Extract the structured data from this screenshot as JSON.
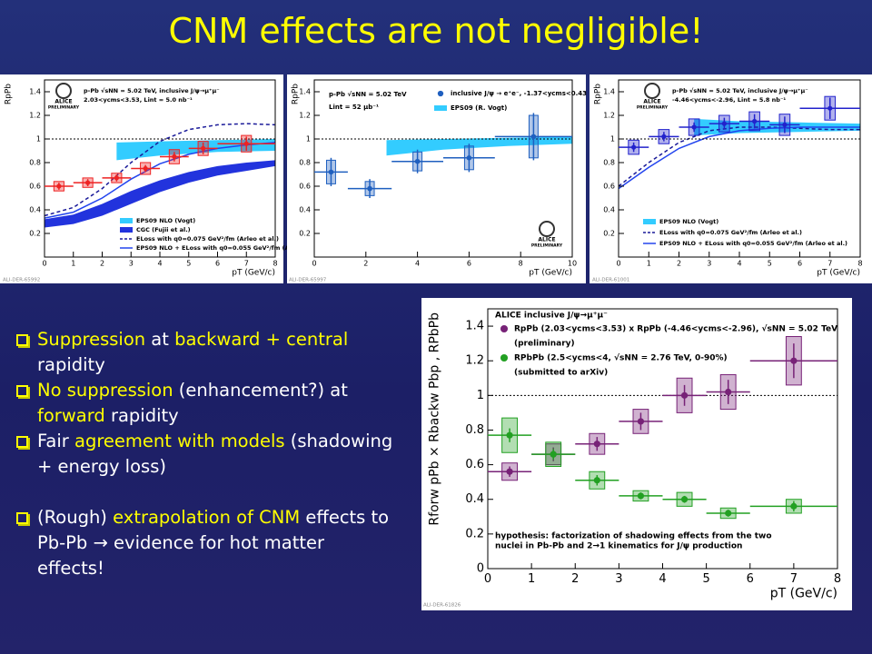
{
  "title": "CNM effects are not negligible!",
  "bullets": [
    [
      {
        "text": "Suppression",
        "color": "#ffff00"
      },
      {
        "text": " at ",
        "color": "#ffffff"
      },
      {
        "text": "backward + central",
        "color": "#ffff00"
      },
      {
        "text": " rapidity",
        "color": "#ffffff"
      }
    ],
    [
      {
        "text": "No suppression",
        "color": "#ffff00"
      },
      {
        "text": " (enhancement?) at ",
        "color": "#ffffff"
      },
      {
        "text": "forward",
        "color": "#ffff00"
      },
      {
        "text": " rapidity",
        "color": "#ffffff"
      }
    ],
    [
      {
        "text": "Fair ",
        "color": "#ffffff"
      },
      {
        "text": "agreement with models",
        "color": "#ffff00"
      },
      {
        "text": " (shadowing + energy loss)",
        "color": "#ffffff"
      }
    ],
    [
      {
        "text": "(Rough) ",
        "color": "#ffffff"
      },
      {
        "text": "extrapolation of CNM",
        "color": "#ffff00"
      },
      {
        "text": " effects  to Pb-Pb → evidence for hot matter effects!",
        "color": "#ffffff"
      }
    ]
  ],
  "chart_data": [
    {
      "type": "scatter",
      "xlabel": "pT (GeV/c)",
      "ylabel": "RpPb",
      "xlim": [
        0,
        8
      ],
      "ylim": [
        0,
        1.5
      ],
      "xticks": [
        0,
        1,
        2,
        3,
        4,
        5,
        6,
        7,
        8
      ],
      "yticks": [
        0.2,
        0.4,
        0.6,
        0.8,
        1,
        1.2,
        1.4
      ],
      "hline": 1,
      "annotations": [
        "p-Pb √sNN = 5.02 TeV, inclusive J/ψ→μ⁺μ⁻",
        "2.03<ycms<3.53, Lint = 5.0 nb⁻¹"
      ],
      "logo": [
        "ALICE",
        "PRELIMINARY"
      ],
      "ref": "ALI-DER-65992",
      "bands": [
        {
          "name": "EPS09 NLO (Vogt)",
          "color": "#33ccff",
          "x": [
            2.5,
            4,
            6,
            8
          ],
          "lower": [
            0.82,
            0.86,
            0.89,
            0.9
          ],
          "upper": [
            0.97,
            0.98,
            0.99,
            1.0
          ]
        },
        {
          "name": "CGC (Fujii et al.)",
          "color": "#2233dd",
          "x": [
            0,
            1,
            2,
            3,
            4,
            5,
            6,
            7,
            8
          ],
          "lower": [
            0.25,
            0.28,
            0.35,
            0.45,
            0.55,
            0.63,
            0.69,
            0.73,
            0.77
          ],
          "upper": [
            0.32,
            0.36,
            0.45,
            0.56,
            0.65,
            0.72,
            0.77,
            0.8,
            0.82
          ]
        }
      ],
      "lines": [
        {
          "name": "ELoss with q0=0.075 GeV²/fm (Arleo et al.)",
          "color": "#1a1a99",
          "dashed": true,
          "x": [
            0,
            1,
            2,
            3,
            4,
            5,
            6,
            7,
            8
          ],
          "values": [
            0.35,
            0.42,
            0.58,
            0.8,
            0.98,
            1.08,
            1.12,
            1.13,
            1.12
          ]
        },
        {
          "name": "EPS09 NLO + ELoss with q0=0.055 GeV²/fm (Arleo et al.)",
          "color": "#2244ee",
          "dashed": false,
          "x": [
            0,
            1,
            2,
            3,
            4,
            5,
            6,
            7,
            8
          ],
          "values": [
            0.33,
            0.38,
            0.5,
            0.66,
            0.79,
            0.87,
            0.92,
            0.95,
            0.97
          ]
        }
      ],
      "series": [
        {
          "name": null,
          "color": "#ee2222",
          "x": [
            0.5,
            1.5,
            2.5,
            3.5,
            4.5,
            5.5,
            7
          ],
          "xerr": [
            0.5,
            0.5,
            0.5,
            0.5,
            0.5,
            0.5,
            1
          ],
          "values": [
            0.6,
            0.63,
            0.67,
            0.75,
            0.85,
            0.92,
            0.96
          ],
          "err": [
            0.03,
            0.03,
            0.03,
            0.03,
            0.04,
            0.05,
            0.06
          ],
          "syst": [
            0.04,
            0.04,
            0.04,
            0.05,
            0.06,
            0.06,
            0.07
          ]
        }
      ]
    },
    {
      "type": "scatter",
      "xlabel": "pT (GeV/c)",
      "ylabel": "RpPb",
      "xlim": [
        0,
        10
      ],
      "ylim": [
        0,
        1.5
      ],
      "xticks": [
        0,
        2,
        4,
        6,
        8,
        10
      ],
      "yticks": [
        0.2,
        0.4,
        0.6,
        0.8,
        1,
        1.2,
        1.4
      ],
      "hline": 1,
      "annotations": [
        "p-Pb √sNN = 5.02 TeV",
        "Lint = 52 μb⁻¹"
      ],
      "logo": [
        "ALICE",
        "PRELIMINARY"
      ],
      "ref": "ALI-DER-65997",
      "bands": [
        {
          "name": "EPS09 (R. Vogt)",
          "color": "#33ccff",
          "x": [
            2.8,
            5,
            7.5,
            10
          ],
          "lower": [
            0.86,
            0.91,
            0.94,
            0.96
          ],
          "upper": [
            0.99,
            1.0,
            1.01,
            1.02
          ]
        }
      ],
      "lines": [],
      "series": [
        {
          "name": "inclusive J/ψ → e⁺e⁻, -1.37<ycms<0.43",
          "color": "#1f5fbf",
          "x": [
            0.65,
            2.15,
            4,
            6,
            8.5
          ],
          "xerr": [
            0.65,
            0.85,
            1,
            1,
            1.5
          ],
          "values": [
            0.72,
            0.58,
            0.81,
            0.84,
            1.02
          ],
          "err": [
            0.12,
            0.08,
            0.1,
            0.12,
            0.2
          ],
          "syst": [
            0.1,
            0.06,
            0.08,
            0.1,
            0.18
          ]
        }
      ]
    },
    {
      "type": "scatter",
      "xlabel": "pT (GeV/c)",
      "ylabel": "RpPb",
      "xlim": [
        0,
        8
      ],
      "ylim": [
        0,
        1.5
      ],
      "xticks": [
        0,
        1,
        2,
        3,
        4,
        5,
        6,
        7,
        8
      ],
      "yticks": [
        0.2,
        0.4,
        0.6,
        0.8,
        1,
        1.2,
        1.4
      ],
      "hline": 1,
      "annotations": [
        "p-Pb √sNN = 5.02 TeV, inclusive J/ψ→μ⁺μ⁻",
        "-4.46<ycms<-2.96, Lint = 5.8 nb⁻¹"
      ],
      "logo": [
        "ALICE",
        "PRELIMINARY"
      ],
      "ref": "ALI-DER-61001",
      "bands": [
        {
          "name": "EPS09 NLO (Vogt)",
          "color": "#33ccff",
          "x": [
            2.5,
            4,
            6,
            8
          ],
          "lower": [
            1.03,
            1.05,
            1.06,
            1.07
          ],
          "upper": [
            1.17,
            1.15,
            1.14,
            1.13
          ]
        }
      ],
      "lines": [
        {
          "name": "ELoss with q0=0.075 GeV²/fm (Arleo et al.)",
          "color": "#1a1a99",
          "dashed": true,
          "x": [
            0,
            1,
            2,
            3,
            4,
            5,
            6,
            7,
            8
          ],
          "values": [
            0.6,
            0.8,
            0.97,
            1.07,
            1.1,
            1.1,
            1.09,
            1.08,
            1.08
          ]
        },
        {
          "name": "EPS09 NLO + ELoss with q0=0.055 GeV²/fm (Arleo et al.)",
          "color": "#2244ee",
          "dashed": false,
          "x": [
            0,
            1,
            2,
            3,
            4,
            5,
            6,
            7,
            8
          ],
          "values": [
            0.58,
            0.76,
            0.92,
            1.02,
            1.07,
            1.09,
            1.1,
            1.1,
            1.1
          ]
        }
      ],
      "series": [
        {
          "name": null,
          "color": "#2222cc",
          "x": [
            0.5,
            1.5,
            2.5,
            3.5,
            4.5,
            5.5,
            7
          ],
          "xerr": [
            0.5,
            0.5,
            0.5,
            0.5,
            0.5,
            0.5,
            1
          ],
          "values": [
            0.93,
            1.02,
            1.1,
            1.13,
            1.15,
            1.12,
            1.26
          ],
          "err": [
            0.04,
            0.04,
            0.04,
            0.05,
            0.06,
            0.07,
            0.09
          ],
          "syst": [
            0.06,
            0.06,
            0.07,
            0.07,
            0.08,
            0.09,
            0.1
          ]
        }
      ]
    },
    {
      "type": "scatter",
      "xlabel": "pT (GeV/c)",
      "ylabel": "Rforw pPb × Rbackw Pbp ,  RPbPb",
      "xlim": [
        0,
        8
      ],
      "ylim": [
        0,
        1.5
      ],
      "xticks": [
        0,
        1,
        2,
        3,
        4,
        5,
        6,
        7,
        8
      ],
      "yticks": [
        0,
        0.2,
        0.4,
        0.6,
        0.8,
        1,
        1.2,
        1.4
      ],
      "hline": 1,
      "annotations": [
        "ALICE inclusive J/ψ→μ⁺μ⁻",
        "(preliminary)",
        "(submitted to arXiv)",
        "hypothesis: factorization of shadowing effects from the two",
        "nuclei in Pb-Pb and 2→1 kinematics for J/ψ production"
      ],
      "logo": [],
      "ref": "ALI-DER-61826",
      "bands": [],
      "lines": [],
      "series": [
        {
          "name": "RpPb (2.03<ycms<3.53) x RpPb (-4.46<ycms<-2.96), √sNN = 5.02 TeV",
          "color": "#772277",
          "x": [
            0.5,
            1.5,
            2.5,
            3.5,
            4.5,
            5.5,
            7
          ],
          "xerr": [
            0.5,
            0.5,
            0.5,
            0.5,
            0.5,
            0.5,
            1
          ],
          "values": [
            0.56,
            0.66,
            0.72,
            0.85,
            1.0,
            1.02,
            1.2
          ],
          "err": [
            0.03,
            0.04,
            0.04,
            0.05,
            0.06,
            0.07,
            0.1
          ],
          "syst": [
            0.05,
            0.06,
            0.06,
            0.07,
            0.1,
            0.1,
            0.14
          ]
        },
        {
          "name": "RPbPb (2.5<ycms<4, √sNN = 2.76 TeV, 0-90%)",
          "color": "#22a022",
          "x": [
            0.5,
            1.5,
            2.5,
            3.5,
            4.5,
            5.5,
            7
          ],
          "xerr": [
            0.5,
            0.5,
            0.5,
            0.5,
            0.5,
            0.5,
            1
          ],
          "values": [
            0.77,
            0.66,
            0.51,
            0.42,
            0.4,
            0.32,
            0.36
          ],
          "err": [
            0.04,
            0.03,
            0.03,
            0.02,
            0.02,
            0.02,
            0.03
          ],
          "syst": [
            0.1,
            0.07,
            0.05,
            0.03,
            0.04,
            0.03,
            0.04
          ]
        }
      ]
    }
  ]
}
